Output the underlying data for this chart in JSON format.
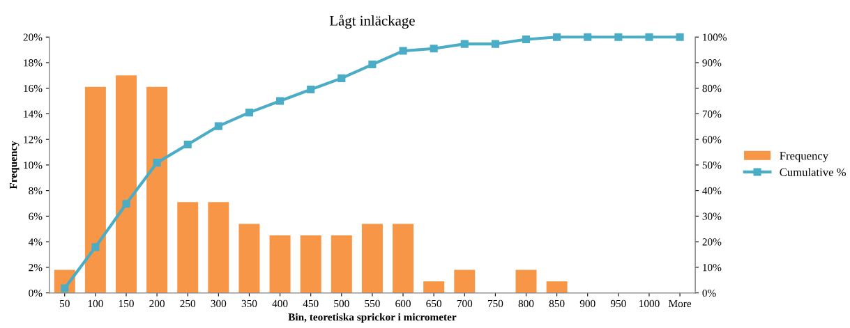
{
  "chart_data": {
    "type": "bar",
    "title": "Lågt inläckage",
    "xlabel": "Bin, teoretiska sprickor i micrometer",
    "ylabel": "Frequency",
    "categories": [
      "50",
      "100",
      "150",
      "200",
      "250",
      "300",
      "350",
      "400",
      "450",
      "500",
      "550",
      "600",
      "650",
      "700",
      "750",
      "800",
      "850",
      "900",
      "950",
      "1000",
      "More"
    ],
    "series": [
      {
        "name": "Frequency",
        "color": "#f79646",
        "values": [
          1.8,
          16.1,
          17.0,
          16.1,
          7.1,
          7.1,
          5.4,
          4.5,
          4.5,
          4.5,
          5.4,
          5.4,
          0.9,
          1.8,
          0,
          1.8,
          0.9,
          0,
          0,
          0,
          0
        ]
      },
      {
        "name": "Cumulative %",
        "type": "line",
        "axis": "y2",
        "color": "#4bacc6",
        "marker": "square",
        "values": [
          1.8,
          17.9,
          34.8,
          50.9,
          58.0,
          65.2,
          70.5,
          75.0,
          79.5,
          83.9,
          89.3,
          94.6,
          95.5,
          97.3,
          97.3,
          99.1,
          100,
          100,
          100,
          100,
          100
        ]
      }
    ],
    "ylim": [
      0,
      20
    ],
    "yticks": [
      {
        "value": 0,
        "label": "0%"
      },
      {
        "value": 2,
        "label": "2%"
      },
      {
        "value": 4,
        "label": "4%"
      },
      {
        "value": 6,
        "label": "6%"
      },
      {
        "value": 8,
        "label": "8%"
      },
      {
        "value": 10,
        "label": "10%"
      },
      {
        "value": 12,
        "label": "12%"
      },
      {
        "value": 14,
        "label": "14%"
      },
      {
        "value": 16,
        "label": "16%"
      },
      {
        "value": 18,
        "label": "18%"
      },
      {
        "value": 20,
        "label": "20%"
      }
    ],
    "y2lim": [
      0,
      100
    ],
    "y2ticks": [
      {
        "value": 0,
        "label": "0%"
      },
      {
        "value": 10,
        "label": "10%"
      },
      {
        "value": 20,
        "label": "20%"
      },
      {
        "value": 30,
        "label": "30%"
      },
      {
        "value": 40,
        "label": "40%"
      },
      {
        "value": 50,
        "label": "50%"
      },
      {
        "value": 60,
        "label": "60%"
      },
      {
        "value": 70,
        "label": "70%"
      },
      {
        "value": 80,
        "label": "80%"
      },
      {
        "value": 90,
        "label": "90%"
      },
      {
        "value": 100,
        "label": "100%"
      }
    ],
    "legend": "right",
    "grid": false
  }
}
